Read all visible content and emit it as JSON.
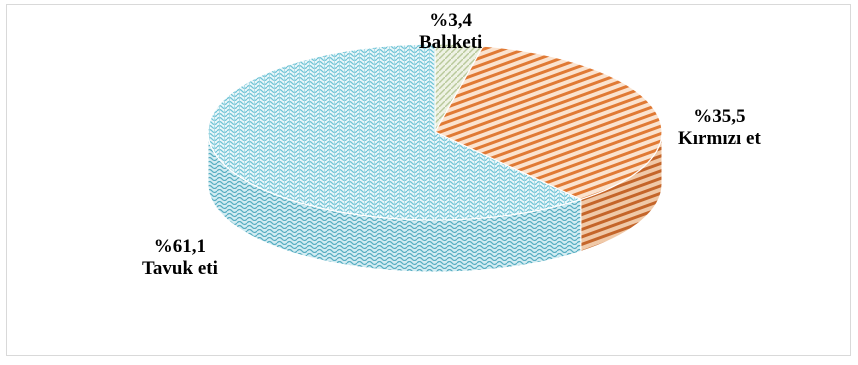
{
  "chart_data": {
    "type": "pie",
    "title": "",
    "categories": [
      "Balıketi",
      "Kırmızı et",
      "Tavuk eti"
    ],
    "values": [
      3.4,
      35.5,
      61.1
    ],
    "value_labels": [
      "%3,4",
      "%35,5",
      "%61,1"
    ],
    "colors": [
      "#c8d6b0",
      "#e07a35",
      "#6ec3d6"
    ],
    "style": "3d",
    "legend": "none"
  }
}
